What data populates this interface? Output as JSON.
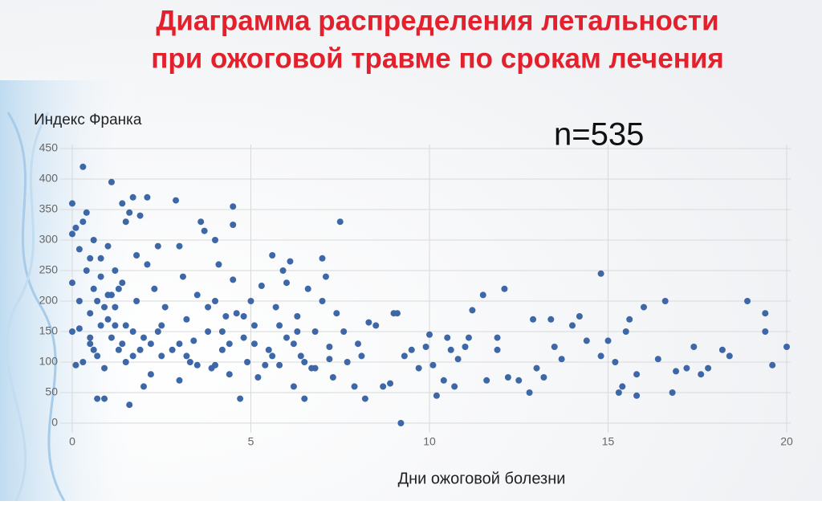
{
  "chart_data": {
    "type": "scatter",
    "title": [
      "Диаграмма распределения летальности",
      "при ожоговой травме по срокам лечения"
    ],
    "ylabel": "Индекс Франка",
    "xlabel": "Дни ожоговой болезни",
    "annotation": "n=535",
    "color": "#3d67a6",
    "grid": true,
    "xlim": [
      0,
      20
    ],
    "xticks": [
      0,
      5,
      10,
      15,
      20
    ],
    "ylim": [
      0,
      450
    ],
    "yticks": [
      0,
      50,
      100,
      150,
      200,
      250,
      300,
      350,
      400,
      450
    ],
    "x": [
      0.0,
      0.0,
      0.0,
      0.0,
      0.1,
      0.1,
      0.2,
      0.2,
      0.3,
      0.3,
      0.4,
      0.4,
      0.5,
      0.5,
      0.5,
      0.6,
      0.6,
      0.7,
      0.7,
      0.8,
      0.8,
      0.9,
      0.9,
      1.0,
      1.0,
      1.0,
      1.1,
      1.1,
      1.2,
      1.2,
      1.3,
      1.4,
      1.4,
      1.5,
      1.5,
      1.6,
      1.6,
      1.7,
      1.7,
      1.8,
      1.8,
      1.9,
      2.0,
      2.0,
      2.1,
      2.1,
      2.2,
      2.3,
      2.4,
      2.4,
      2.5,
      2.6,
      2.8,
      2.9,
      3.0,
      3.0,
      3.1,
      3.2,
      3.3,
      3.4,
      3.5,
      3.6,
      3.7,
      3.8,
      3.9,
      4.0,
      4.0,
      4.1,
      4.2,
      4.3,
      4.4,
      4.5,
      4.5,
      4.5,
      4.6,
      4.7,
      4.8,
      4.9,
      5.0,
      5.1,
      5.2,
      5.3,
      5.5,
      5.6,
      5.7,
      5.8,
      5.9,
      6.0,
      6.1,
      6.2,
      6.3,
      6.4,
      6.5,
      6.6,
      6.7,
      6.8,
      7.0,
      7.0,
      7.1,
      7.2,
      7.3,
      7.4,
      7.5,
      7.6,
      7.7,
      7.9,
      8.0,
      8.1,
      8.2,
      8.3,
      8.5,
      8.7,
      8.9,
      9.0,
      9.1,
      9.2,
      9.3,
      9.5,
      9.7,
      9.9,
      10.0,
      10.1,
      10.2,
      10.4,
      10.5,
      10.6,
      10.7,
      10.8,
      11.0,
      11.1,
      11.2,
      11.5,
      11.6,
      11.9,
      11.9,
      12.1,
      12.2,
      12.5,
      12.8,
      12.9,
      13.0,
      13.2,
      13.4,
      13.5,
      13.7,
      14.0,
      14.2,
      14.4,
      14.8,
      15.0,
      14.8,
      15.2,
      15.3,
      15.4,
      15.5,
      15.6,
      15.8,
      15.8,
      16.0,
      16.4,
      16.6,
      16.8,
      16.9,
      17.2,
      17.4,
      17.6,
      17.8,
      18.2,
      18.4,
      18.9,
      19.4,
      19.4,
      19.6,
      20.0,
      0.2,
      0.3,
      0.5,
      0.6,
      0.7,
      0.8,
      0.9,
      1.1,
      1.2,
      1.3,
      1.4,
      1.5,
      1.7,
      1.9,
      2.2,
      2.5,
      3.2,
      3.5,
      3.8,
      4.2,
      4.4,
      4.8,
      5.1,
      5.4,
      5.6,
      6.0,
      6.2,
      6.5,
      6.8,
      7.2,
      5.8,
      6.3,
      4.0,
      3.0
    ],
    "values": [
      360,
      310,
      230,
      150,
      95,
      320,
      285,
      200,
      420,
      330,
      345,
      250,
      270,
      180,
      130,
      300,
      220,
      40,
      110,
      240,
      160,
      40,
      90,
      290,
      210,
      170,
      395,
      140,
      250,
      190,
      120,
      360,
      230,
      330,
      160,
      30,
      345,
      370,
      110,
      275,
      200,
      340,
      140,
      60,
      370,
      260,
      80,
      220,
      290,
      150,
      110,
      190,
      120,
      365,
      290,
      70,
      240,
      170,
      100,
      135,
      210,
      330,
      315,
      150,
      90,
      300,
      200,
      260,
      120,
      175,
      80,
      355,
      325,
      235,
      180,
      40,
      140,
      100,
      200,
      160,
      75,
      225,
      120,
      275,
      190,
      95,
      250,
      140,
      265,
      60,
      175,
      110,
      40,
      220,
      90,
      150,
      270,
      200,
      240,
      125,
      75,
      180,
      330,
      150,
      100,
      60,
      130,
      110,
      40,
      165,
      160,
      60,
      65,
      180,
      180,
      0,
      110,
      120,
      90,
      125,
      145,
      95,
      45,
      70,
      140,
      120,
      60,
      105,
      125,
      140,
      185,
      210,
      70,
      140,
      120,
      220,
      75,
      70,
      50,
      170,
      90,
      75,
      170,
      125,
      105,
      160,
      175,
      135,
      110,
      135,
      245,
      100,
      50,
      60,
      150,
      170,
      80,
      45,
      190,
      105,
      200,
      50,
      85,
      90,
      125,
      80,
      90,
      120,
      110,
      200,
      180,
      150,
      95,
      125,
      155,
      100,
      140,
      120,
      200,
      270,
      190,
      210,
      160,
      220,
      130,
      100,
      150,
      120,
      130,
      160,
      110,
      95,
      190,
      150,
      130,
      175,
      130,
      95,
      110,
      230,
      130,
      100,
      90,
      105,
      160,
      150,
      95,
      130
    ]
  }
}
